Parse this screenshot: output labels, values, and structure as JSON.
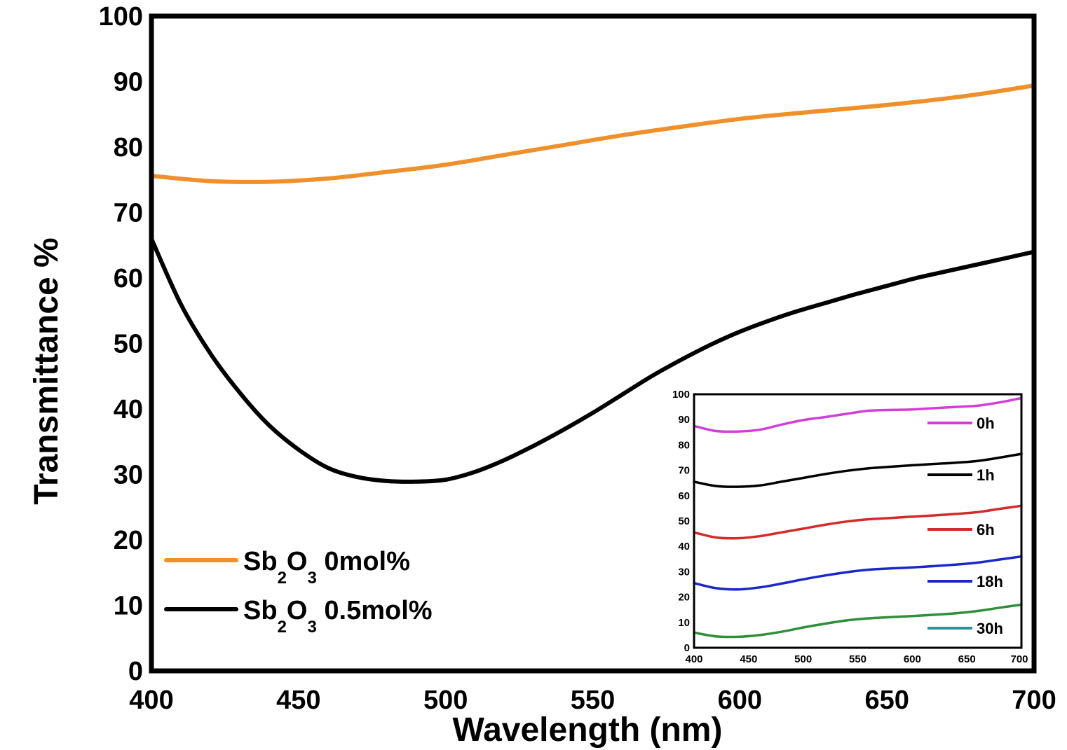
{
  "chart_data": [
    {
      "type": "line",
      "xlabel": "Wavelength (nm)",
      "ylabel": "Transmittance %",
      "xlim": [
        400,
        700
      ],
      "ylim": [
        0,
        100
      ],
      "xticks": [
        400,
        450,
        500,
        550,
        600,
        650,
        700
      ],
      "yticks": [
        0,
        10,
        20,
        30,
        40,
        50,
        60,
        70,
        80,
        90,
        100
      ],
      "grid": false,
      "legend_position": "bottom-left",
      "series": [
        {
          "name": "Sb2O3 0mol%",
          "legend": {
            "prefix": "Sb",
            "sub1": "2",
            "mid": "O",
            "sub2": "3",
            "suffix": "0mol%"
          },
          "color": "#F0902A",
          "x": [
            400,
            420,
            440,
            460,
            480,
            500,
            520,
            540,
            560,
            580,
            600,
            620,
            640,
            660,
            680,
            700
          ],
          "y": [
            75.6,
            74.8,
            74.7,
            75.2,
            76.2,
            77.3,
            78.8,
            80.3,
            81.8,
            83.1,
            84.3,
            85.2,
            86.0,
            86.9,
            88.0,
            89.4
          ]
        },
        {
          "name": "Sb2O3 0.5mol%",
          "legend": {
            "prefix": "Sb",
            "sub1": "2",
            "mid": "O",
            "sub2": "3",
            "suffix": "0.5mol%"
          },
          "color": "#000000",
          "x": [
            400,
            410,
            420,
            430,
            440,
            450,
            460,
            470,
            480,
            490,
            500,
            510,
            520,
            530,
            540,
            550,
            560,
            570,
            580,
            590,
            600,
            610,
            620,
            630,
            640,
            650,
            660,
            670,
            680,
            690,
            700
          ],
          "y": [
            66.0,
            56.0,
            48.5,
            42.5,
            37.5,
            33.8,
            31.0,
            29.6,
            29.0,
            28.9,
            29.2,
            30.4,
            32.2,
            34.4,
            36.8,
            39.4,
            42.2,
            45.0,
            47.5,
            49.8,
            51.8,
            53.5,
            55.0,
            56.3,
            57.6,
            58.8,
            60.0,
            61.0,
            62.0,
            63.0,
            64.0
          ]
        }
      ]
    },
    {
      "type": "line",
      "xlabel": "",
      "ylabel": "",
      "xlim": [
        400,
        700
      ],
      "ylim": [
        0,
        100
      ],
      "xticks": [
        400,
        450,
        500,
        550,
        600,
        650,
        700
      ],
      "yticks": [
        0,
        10,
        20,
        30,
        40,
        50,
        60,
        70,
        80,
        90,
        100
      ],
      "grid": false,
      "legend_position": "right",
      "series": [
        {
          "name": "0h",
          "color": "#D13FD6",
          "x": [
            400,
            420,
            440,
            460,
            480,
            500,
            520,
            540,
            560,
            580,
            600,
            620,
            640,
            660,
            680,
            700
          ],
          "y": [
            87.5,
            85.5,
            85.3,
            86.0,
            88.0,
            89.8,
            91.0,
            92.3,
            93.5,
            93.8,
            94.0,
            94.5,
            95.0,
            95.5,
            96.8,
            98.5
          ]
        },
        {
          "name": "1h",
          "color": "#000000",
          "x": [
            400,
            420,
            440,
            460,
            480,
            500,
            520,
            540,
            560,
            580,
            600,
            620,
            640,
            660,
            680,
            700
          ],
          "y": [
            65.5,
            63.8,
            63.5,
            64.0,
            65.5,
            67.0,
            68.5,
            69.8,
            70.8,
            71.4,
            72.0,
            72.5,
            73.0,
            73.7,
            75.0,
            76.5
          ]
        },
        {
          "name": "6h",
          "color": "#D42A2A",
          "x": [
            400,
            420,
            440,
            460,
            480,
            500,
            520,
            540,
            560,
            580,
            600,
            620,
            640,
            660,
            680,
            700
          ],
          "y": [
            45.5,
            43.5,
            43.2,
            44.0,
            45.5,
            47.0,
            48.5,
            49.8,
            50.7,
            51.2,
            51.7,
            52.2,
            52.8,
            53.5,
            54.8,
            56.0
          ]
        },
        {
          "name": "18h",
          "color": "#1B27C9",
          "x": [
            400,
            420,
            440,
            460,
            480,
            500,
            520,
            540,
            560,
            580,
            600,
            620,
            640,
            660,
            680,
            700
          ],
          "y": [
            25.5,
            23.5,
            23.0,
            23.8,
            25.3,
            27.0,
            28.5,
            29.8,
            30.8,
            31.3,
            31.7,
            32.2,
            32.8,
            33.6,
            34.8,
            36.0
          ]
        },
        {
          "name": "30h",
          "color": "#2F8F3A",
          "legend_color": "#1F9A9A",
          "x": [
            400,
            420,
            440,
            460,
            480,
            500,
            520,
            540,
            560,
            580,
            600,
            620,
            640,
            660,
            680,
            700
          ],
          "y": [
            6.0,
            4.5,
            4.3,
            5.0,
            6.3,
            8.0,
            9.5,
            10.8,
            11.6,
            12.1,
            12.5,
            13.0,
            13.6,
            14.5,
            15.8,
            17.0
          ]
        }
      ]
    }
  ]
}
